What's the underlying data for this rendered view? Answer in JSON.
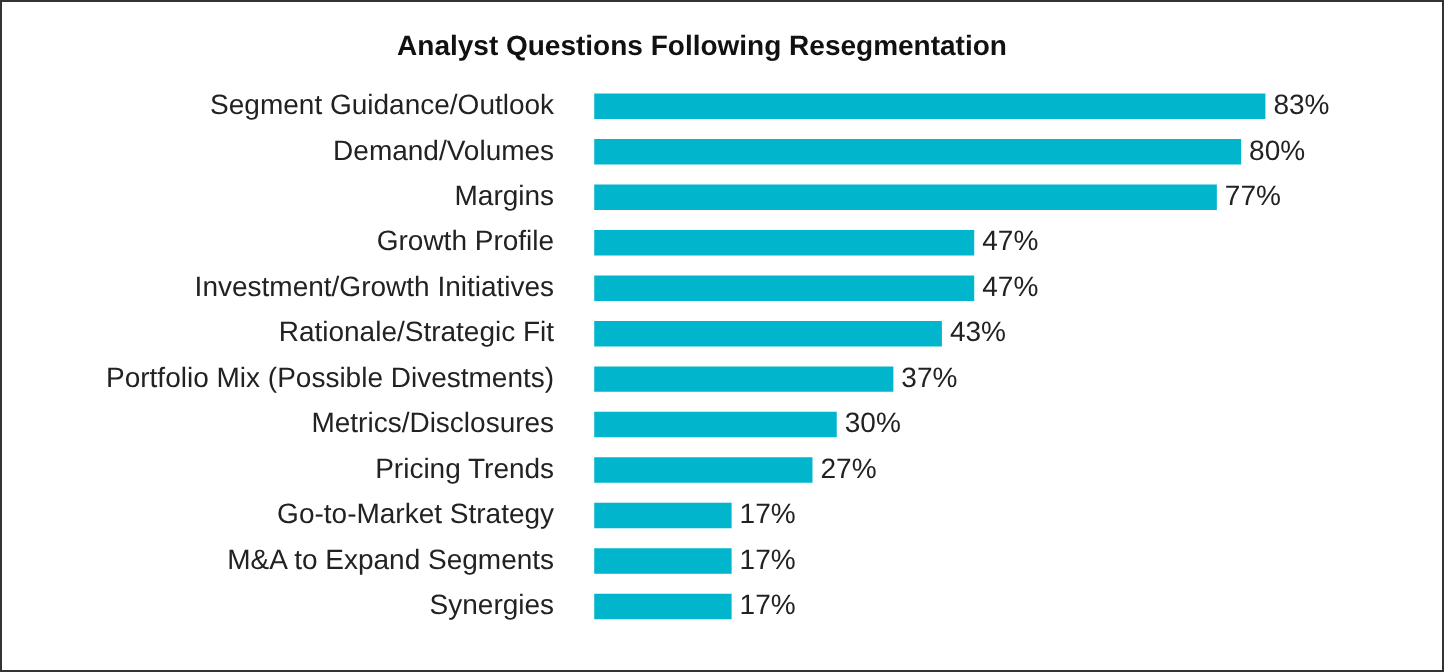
{
  "chart_data": {
    "type": "bar",
    "orientation": "horizontal",
    "title": "Analyst Questions Following Resegmentation",
    "categories": [
      "Segment Guidance/Outlook",
      "Demand/Volumes",
      "Margins",
      "Growth Profile",
      "Investment/Growth Initiatives",
      "Rationale/Strategic Fit",
      "Portfolio Mix (Possible Divestments)",
      "Metrics/Disclosures",
      "Pricing Trends",
      "Go-to-Market Strategy",
      "M&A to Expand Segments",
      "Synergies"
    ],
    "values": [
      83,
      80,
      77,
      47,
      47,
      43,
      37,
      30,
      27,
      17,
      17,
      17
    ],
    "value_labels": [
      "83%",
      "80%",
      "77%",
      "47%",
      "47%",
      "43%",
      "37%",
      "30%",
      "27%",
      "17%",
      "17%",
      "17%"
    ],
    "color": "#00b5cc"
  }
}
